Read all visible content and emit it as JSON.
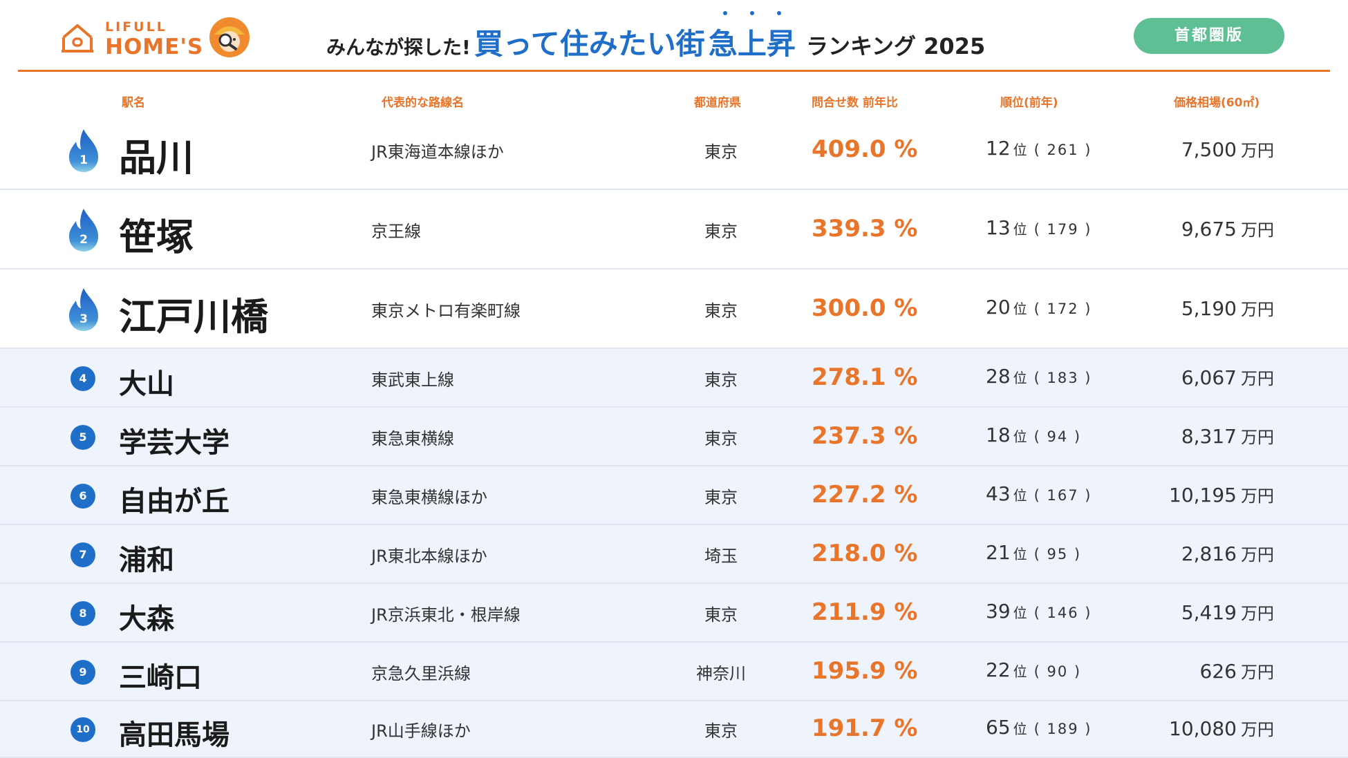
{
  "header": {
    "logo_small": "LIFULL",
    "logo_big": "HOME'S",
    "title_pre": "みんなが探した!",
    "title_main": "買って住みたい街",
    "title_emph": "急上昇",
    "title_post": "ランキング 2025",
    "region_button": "首都圏版"
  },
  "columns": {
    "station": "駅名",
    "line": "代表的な路線名",
    "pref": "都道府県",
    "pct": "問合せ数 前年比",
    "rank": "順位(前年)",
    "price": "価格相場(60㎡)"
  },
  "colors": {
    "accent": "#e8752a",
    "blue": "#1f6fc8",
    "green": "#5dbf93",
    "row_bg": "#eef3fc"
  },
  "rows": [
    {
      "rank": "1",
      "station": "品川",
      "line": "JR東海道本線ほか",
      "pref": "東京",
      "pct": "409.0 %",
      "now": "12",
      "unit": "位",
      "prev": "( 261 )",
      "price": "7,500",
      "price_unit": "万円"
    },
    {
      "rank": "2",
      "station": "笹塚",
      "line": "京王線",
      "pref": "東京",
      "pct": "339.3 %",
      "now": "13",
      "unit": "位",
      "prev": "( 179 )",
      "price": "9,675",
      "price_unit": "万円"
    },
    {
      "rank": "3",
      "station": "江戸川橋",
      "line": "東京メトロ有楽町線",
      "pref": "東京",
      "pct": "300.0 %",
      "now": "20",
      "unit": "位",
      "prev": "( 172 )",
      "price": "5,190",
      "price_unit": "万円"
    },
    {
      "rank": "4",
      "station": "大山",
      "line": "東武東上線",
      "pref": "東京",
      "pct": "278.1 %",
      "now": "28",
      "unit": "位",
      "prev": "( 183 )",
      "price": "6,067",
      "price_unit": "万円"
    },
    {
      "rank": "5",
      "station": "学芸大学",
      "line": "東急東横線",
      "pref": "東京",
      "pct": "237.3 %",
      "now": "18",
      "unit": "位",
      "prev": "(  94  )",
      "price": "8,317",
      "price_unit": "万円"
    },
    {
      "rank": "6",
      "station": "自由が丘",
      "line": "東急東横線ほか",
      "pref": "東京",
      "pct": "227.2 %",
      "now": "43",
      "unit": "位",
      "prev": "( 167 )",
      "price": "10,195",
      "price_unit": "万円"
    },
    {
      "rank": "7",
      "station": "浦和",
      "line": "JR東北本線ほか",
      "pref": "埼玉",
      "pct": "218.0 %",
      "now": "21",
      "unit": "位",
      "prev": "(  95  )",
      "price": "2,816",
      "price_unit": "万円"
    },
    {
      "rank": "8",
      "station": "大森",
      "line": "JR京浜東北・根岸線",
      "pref": "東京",
      "pct": "211.9 %",
      "now": "39",
      "unit": "位",
      "prev": "( 146 )",
      "price": "5,419",
      "price_unit": "万円"
    },
    {
      "rank": "9",
      "station": "三崎口",
      "line": "京急久里浜線",
      "pref": "神奈川",
      "pct": "195.9 %",
      "now": "22",
      "unit": "位",
      "prev": "(  90  )",
      "price": "626",
      "price_unit": "万円"
    },
    {
      "rank": "10",
      "station": "高田馬場",
      "line": "JR山手線ほか",
      "pref": "東京",
      "pct": "191.7 %",
      "now": "65",
      "unit": "位",
      "prev": "( 189 )",
      "price": "10,080",
      "price_unit": "万円"
    }
  ]
}
